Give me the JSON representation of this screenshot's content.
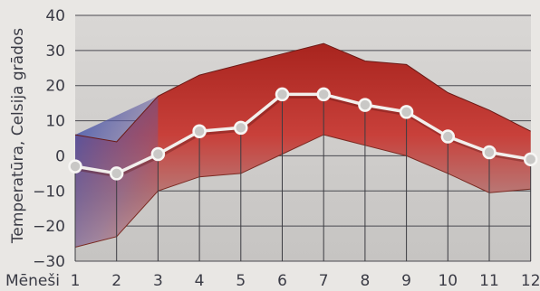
{
  "chart_data": {
    "type": "area",
    "ylabel": "Temperatūra, Celsija grādos",
    "xlabel": "Mēneši",
    "x": [
      1,
      2,
      3,
      4,
      5,
      6,
      7,
      8,
      9,
      10,
      11,
      12
    ],
    "x_tick_labels": [
      "1",
      "2",
      "3",
      "4",
      "5",
      "6",
      "7",
      "8",
      "9",
      "10",
      "11",
      "12"
    ],
    "y_ticks": [
      40,
      30,
      20,
      10,
      0,
      -10,
      -20,
      -30
    ],
    "y_tick_labels": [
      "40",
      "30",
      "20",
      "10",
      "0",
      "−10",
      "−20",
      "−30"
    ],
    "ylim": [
      -30,
      40
    ],
    "grid": true,
    "series": [
      {
        "role": "max",
        "values": [
          6,
          4,
          17,
          23,
          26,
          29,
          32,
          27,
          26,
          18,
          13,
          7
        ]
      },
      {
        "role": "mean",
        "values": [
          -3,
          -5,
          0.5,
          7,
          8,
          17.5,
          17.5,
          14.5,
          12.5,
          5.5,
          1,
          -1
        ]
      },
      {
        "role": "min",
        "values": [
          -26,
          -23,
          -10,
          -6,
          -5,
          0.5,
          6,
          3,
          0,
          -5,
          -10.5,
          -9.5
        ]
      }
    ],
    "colors": {
      "band_top": "#b32a22",
      "band_mid": "#c8453a",
      "band_cold": "#2a4aa6",
      "background": "#e9e7e4",
      "mean_line": "#f2efec"
    }
  }
}
